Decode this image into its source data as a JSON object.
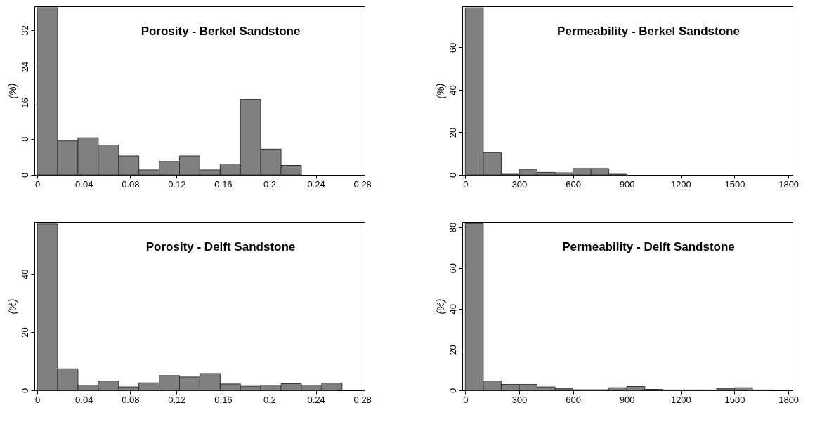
{
  "chart_data": [
    {
      "type": "histogram",
      "title": "Porosity - Berkel Sandstone",
      "ylabel": "(%)",
      "color": "#808080",
      "bins": [
        0,
        0.0175,
        0.035,
        0.0525,
        0.07,
        0.0875,
        0.105,
        0.1225,
        0.14,
        0.1575,
        0.175,
        0.1925,
        0.21,
        0.2275
      ],
      "values": [
        37.0,
        7.5,
        8.2,
        6.6,
        4.2,
        1.1,
        3.0,
        4.2,
        1.1,
        2.4,
        16.7,
        5.7,
        2.1
      ],
      "xlim": [
        -0.0025,
        0.282
      ],
      "xticks": [
        0,
        0.04,
        0.08,
        0.12,
        0.16,
        0.2,
        0.24,
        0.28
      ],
      "ylim": [
        0,
        37.3
      ],
      "yticks": [
        0,
        8,
        16,
        24,
        32
      ],
      "grid": false
    },
    {
      "type": "histogram",
      "title": "Permeability - Berkel Sandstone",
      "ylabel": "(%)",
      "color": "#808080",
      "bins": [
        0,
        100,
        200,
        300,
        400,
        500,
        600,
        700,
        800,
        900
      ],
      "values": [
        78.6,
        10.5,
        0.3,
        2.7,
        1.2,
        1.0,
        3.0,
        3.0,
        0.3
      ],
      "xlim": [
        -17,
        1823
      ],
      "xticks": [
        0,
        300,
        600,
        900,
        1200,
        1500,
        1800
      ],
      "ylim": [
        0,
        79.3
      ],
      "yticks": [
        0,
        20,
        40,
        60
      ],
      "grid": false
    },
    {
      "type": "histogram",
      "title": "Porosity - Delft Sandstone",
      "ylabel": "(%)",
      "color": "#808080",
      "bins": [
        0,
        0.0175,
        0.035,
        0.0525,
        0.07,
        0.0875,
        0.105,
        0.1225,
        0.14,
        0.1575,
        0.175,
        0.1925,
        0.21,
        0.2275,
        0.245,
        0.2625
      ],
      "values": [
        57.2,
        7.4,
        1.8,
        3.2,
        1.2,
        2.6,
        5.1,
        4.6,
        5.8,
        2.2,
        1.4,
        1.8,
        2.3,
        1.8,
        2.5
      ],
      "xlim": [
        -0.0025,
        0.282
      ],
      "xticks": [
        0,
        0.04,
        0.08,
        0.12,
        0.16,
        0.2,
        0.24,
        0.28
      ],
      "ylim": [
        0,
        57.9
      ],
      "yticks": [
        0,
        20,
        40
      ],
      "grid": false
    },
    {
      "type": "histogram",
      "title": "Permeability - Delft Sandstone",
      "ylabel": "(%)",
      "color": "#808080",
      "bins": [
        0,
        100,
        200,
        300,
        400,
        500,
        600,
        700,
        800,
        900,
        1000,
        1100,
        1200,
        1300,
        1400,
        1500,
        1600,
        1700
      ],
      "values": [
        81.8,
        4.6,
        2.9,
        2.9,
        1.7,
        0.8,
        0.3,
        0.3,
        1.3,
        1.9,
        0.5,
        0.2,
        0.2,
        0.2,
        0.8,
        1.3,
        0.2
      ],
      "xlim": [
        -17,
        1823
      ],
      "xticks": [
        0,
        300,
        600,
        900,
        1200,
        1500,
        1800
      ],
      "ylim": [
        0,
        82.6
      ],
      "yticks": [
        0,
        20,
        40,
        60,
        80
      ],
      "grid": false
    }
  ]
}
